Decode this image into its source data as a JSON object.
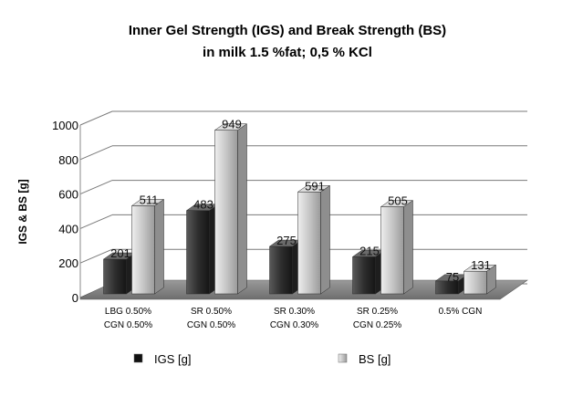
{
  "chart_data": {
    "type": "bar",
    "title_lines": [
      "Inner Gel  Strength (IGS) and Break  Strength (BS)",
      "in milk 1.5 %fat; 0,5 % KCl"
    ],
    "ylabel": "IGS & BS [g]",
    "xlabel": "",
    "ylim": [
      0,
      1000
    ],
    "yticks": [
      "0",
      "200",
      "400",
      "600",
      "800",
      "1000"
    ],
    "categories": [
      [
        "LBG 0.50%",
        "CGN 0.50%"
      ],
      [
        "SR 0.50%",
        "CGN 0.50%"
      ],
      [
        "SR 0.30%",
        "CGN 0.30%"
      ],
      [
        "SR 0.25%",
        "CGN 0.25%"
      ],
      [
        "0.5% CGN"
      ]
    ],
    "series": [
      {
        "name": "IGS [g]",
        "values": [
          201,
          483,
          275,
          215,
          75
        ],
        "color": "#3a3a3a"
      },
      {
        "name": "BS [g]",
        "values": [
          511,
          949,
          591,
          505,
          131
        ],
        "color": "#c4c4c4"
      }
    ],
    "data_labels": [
      [
        "201",
        "483",
        "275",
        "215",
        "75"
      ],
      [
        "511",
        "949",
        "591",
        "505",
        "131"
      ]
    ],
    "grid": true,
    "legend_position": "bottom"
  }
}
